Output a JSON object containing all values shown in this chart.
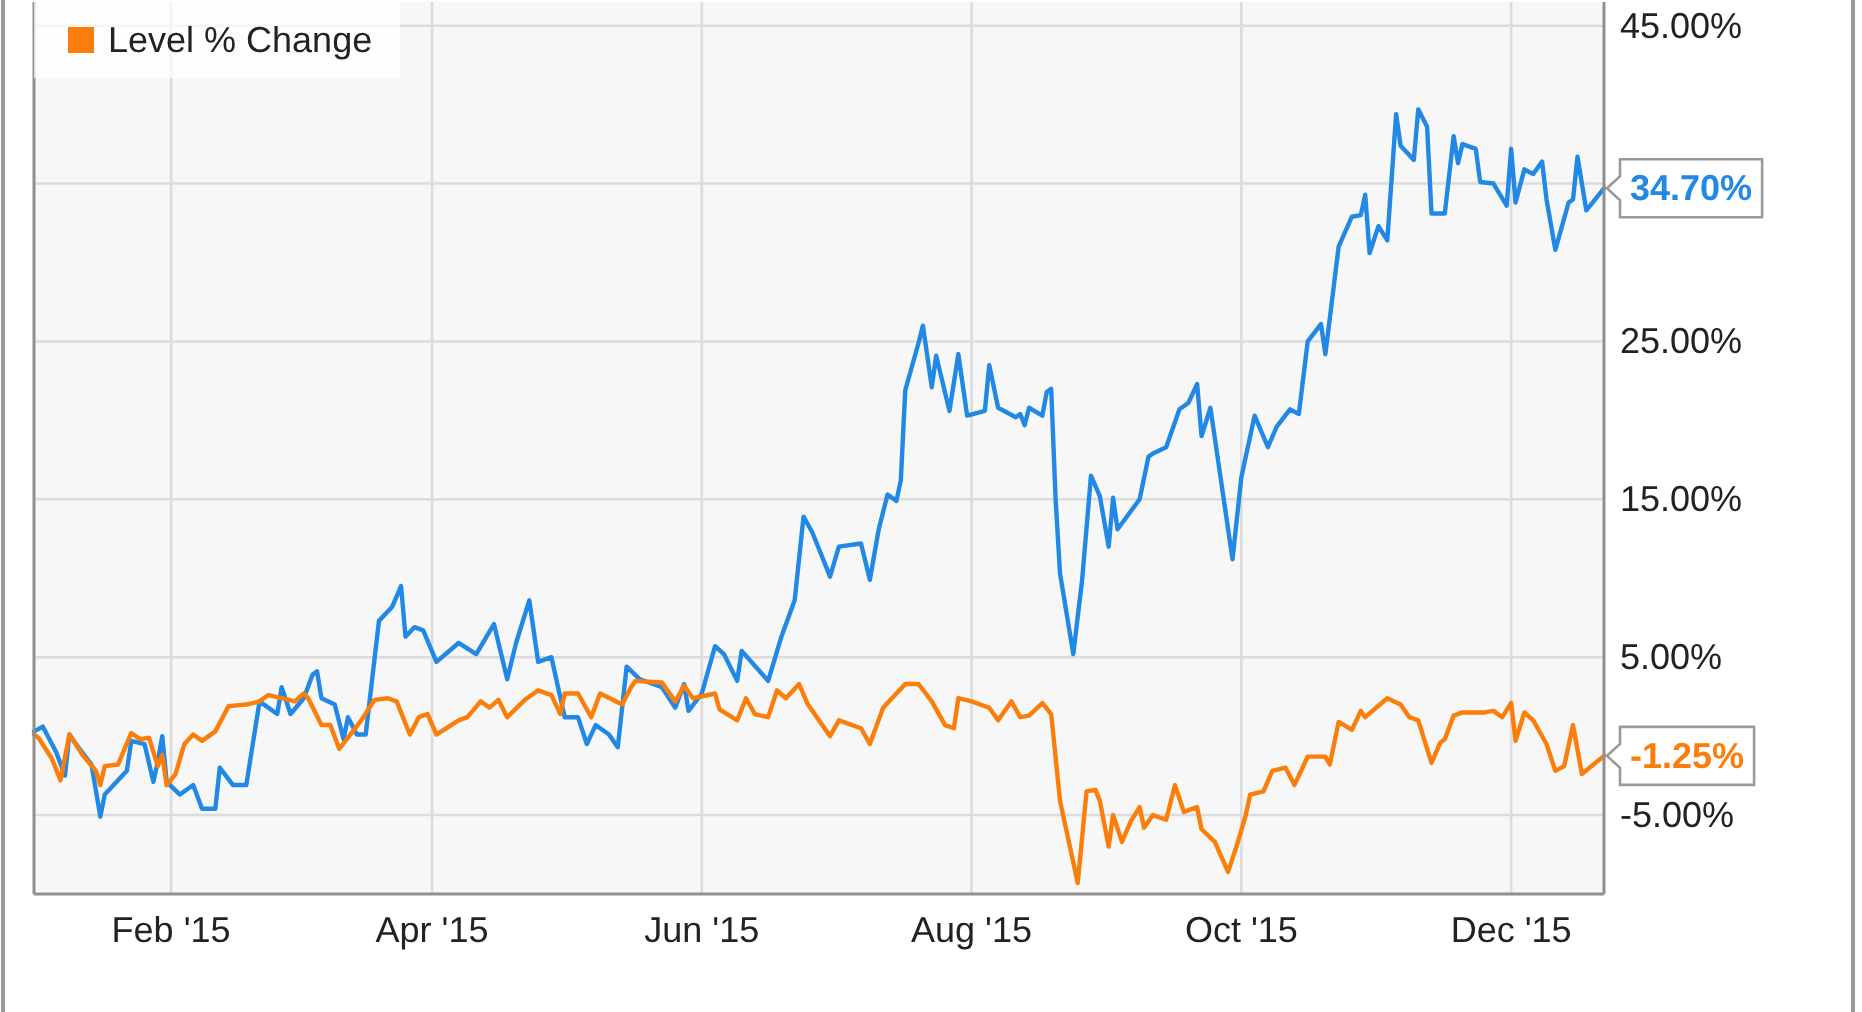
{
  "chart_data": {
    "type": "line",
    "xlim": [
      "2015-01-01",
      "2015-12-22"
    ],
    "ylim": [
      -10,
      46.5
    ],
    "xticks": [
      {
        "value": "2015-02-01",
        "label": "Feb '15"
      },
      {
        "value": "2015-04-01",
        "label": "Apr '15"
      },
      {
        "value": "2015-06-01",
        "label": "Jun '15"
      },
      {
        "value": "2015-08-01",
        "label": "Aug '15"
      },
      {
        "value": "2015-10-01",
        "label": "Oct '15"
      },
      {
        "value": "2015-12-01",
        "label": "Dec '15"
      }
    ],
    "yticks": [
      {
        "value": -5,
        "label": "-5.00%"
      },
      {
        "value": 5,
        "label": "5.00%"
      },
      {
        "value": 15,
        "label": "15.00%"
      },
      {
        "value": 25,
        "label": "25.00%"
      },
      {
        "value": 35,
        "label": null
      },
      {
        "value": 45,
        "label": "45.00%"
      }
    ],
    "grid": true,
    "legend": "top left",
    "line_style": "solid",
    "series": [
      {
        "color": "#2188e6",
        "x": [
          "2015-01-01",
          "2015-01-03",
          "2015-01-06",
          "2015-01-08",
          "2015-01-09",
          "2015-01-11",
          "2015-01-14",
          "2015-01-16",
          "2015-01-17",
          "2015-01-22",
          "2015-01-23",
          "2015-01-26",
          "2015-01-28",
          "2015-01-29",
          "2015-01-30",
          "2015-01-31",
          "2015-02-03",
          "2015-02-06",
          "2015-02-08",
          "2015-02-11",
          "2015-02-12",
          "2015-02-15",
          "2015-02-18",
          "2015-02-21",
          "2015-02-25",
          "2015-02-26",
          "2015-02-28",
          "2015-03-03",
          "2015-03-05",
          "2015-03-06",
          "2015-03-07",
          "2015-03-10",
          "2015-03-12",
          "2015-03-13",
          "2015-03-15",
          "2015-03-17",
          "2015-03-20",
          "2015-03-23",
          "2015-03-25",
          "2015-03-26",
          "2015-03-28",
          "2015-03-30",
          "2015-04-02",
          "2015-04-07",
          "2015-04-11",
          "2015-04-15",
          "2015-04-18",
          "2015-04-20",
          "2015-04-23",
          "2015-04-25",
          "2015-04-28",
          "2015-05-01",
          "2015-05-04",
          "2015-05-06",
          "2015-05-08",
          "2015-05-11",
          "2015-05-13",
          "2015-05-15",
          "2015-05-18",
          "2015-05-23",
          "2015-05-26",
          "2015-05-28",
          "2015-05-29",
          "2015-06-01",
          "2015-06-04",
          "2015-06-06",
          "2015-06-09",
          "2015-06-10",
          "2015-06-16",
          "2015-06-19",
          "2015-06-22",
          "2015-06-24",
          "2015-06-26",
          "2015-06-30",
          "2015-07-02",
          "2015-07-07",
          "2015-07-09",
          "2015-07-11",
          "2015-07-13",
          "2015-07-15",
          "2015-07-16",
          "2015-07-17",
          "2015-07-20",
          "2015-07-21",
          "2015-07-23",
          "2015-07-24",
          "2015-07-27",
          "2015-07-29",
          "2015-07-31",
          "2015-08-04",
          "2015-08-05",
          "2015-08-07",
          "2015-08-11",
          "2015-08-12",
          "2015-08-13",
          "2015-08-14",
          "2015-08-17",
          "2015-08-18",
          "2015-08-19",
          "2015-08-20",
          "2015-08-21",
          "2015-08-24",
          "2015-08-26",
          "2015-08-28",
          "2015-08-30",
          "2015-09-01",
          "2015-09-02",
          "2015-09-03",
          "2015-09-08",
          "2015-09-10",
          "2015-09-11",
          "2015-09-14",
          "2015-09-17",
          "2015-09-19",
          "2015-09-21",
          "2015-09-22",
          "2015-09-24",
          "2015-09-29",
          "2015-10-01",
          "2015-10-04",
          "2015-10-07",
          "2015-10-09",
          "2015-10-12",
          "2015-10-14",
          "2015-10-16",
          "2015-10-19",
          "2015-10-20",
          "2015-10-23",
          "2015-10-26",
          "2015-10-28",
          "2015-10-29",
          "2015-10-30",
          "2015-11-01",
          "2015-11-03",
          "2015-11-05",
          "2015-11-06",
          "2015-11-09",
          "2015-11-10",
          "2015-11-12",
          "2015-11-13",
          "2015-11-16",
          "2015-11-18",
          "2015-11-19",
          "2015-11-20",
          "2015-11-23",
          "2015-11-24",
          "2015-11-27",
          "2015-11-30",
          "2015-12-01",
          "2015-12-02",
          "2015-12-04",
          "2015-12-06",
          "2015-12-08",
          "2015-12-09",
          "2015-12-11",
          "2015-12-14",
          "2015-12-15",
          "2015-12-16",
          "2015-12-18",
          "2015-12-22"
        ],
        "values": [
          0.3,
          0.6,
          -1.0,
          -2.5,
          0.1,
          -0.7,
          -1.8,
          -5.1,
          -3.7,
          -2.2,
          -0.3,
          -0.5,
          -2.9,
          -1.6,
          0.0,
          -2.9,
          -3.7,
          -3.1,
          -4.6,
          -4.6,
          -2.0,
          -3.1,
          -3.1,
          2.2,
          1.4,
          3.1,
          1.4,
          2.4,
          3.9,
          4.1,
          2.4,
          2.0,
          -0.2,
          1.2,
          0.1,
          0.1,
          7.3,
          8.2,
          9.5,
          6.3,
          6.9,
          6.7,
          4.7,
          5.9,
          5.2,
          7.1,
          3.6,
          5.9,
          8.6,
          4.7,
          5.0,
          1.2,
          1.2,
          -0.5,
          0.7,
          0.1,
          -0.7,
          4.4,
          3.6,
          3.1,
          1.8,
          3.3,
          1.6,
          2.7,
          5.7,
          5.2,
          3.5,
          5.4,
          3.5,
          6.3,
          8.6,
          13.9,
          12.9,
          10.1,
          12.0,
          12.2,
          9.9,
          13.1,
          15.3,
          14.9,
          16.2,
          21.9,
          24.9,
          26.0,
          22.1,
          24.1,
          20.6,
          24.2,
          20.3,
          20.6,
          23.5,
          20.8,
          20.2,
          20.4,
          19.7,
          20.8,
          20.3,
          21.8,
          22.0,
          15.0,
          10.3,
          5.2,
          9.9,
          16.5,
          15.2,
          12.0,
          15.1,
          13.1,
          15.0,
          17.7,
          17.9,
          18.3,
          20.7,
          21.1,
          22.3,
          19.0,
          20.8,
          11.2,
          16.4,
          20.3,
          18.3,
          19.6,
          20.7,
          20.4,
          25.0,
          26.1,
          24.2,
          31.0,
          32.9,
          33.0,
          34.3,
          30.6,
          32.3,
          31.4,
          39.4,
          37.4,
          36.5,
          39.7,
          38.6,
          33.1,
          33.1,
          38.0,
          36.3,
          37.5,
          37.2,
          35.1,
          35.0,
          33.6,
          37.2,
          33.8,
          35.9,
          35.6,
          36.4,
          34.0,
          30.8,
          33.8,
          34.0,
          36.7,
          33.3,
          34.7
        ],
        "value_labels": [
          null,
          null,
          null,
          null,
          null,
          null,
          null,
          null,
          null,
          null,
          null,
          null,
          null,
          null,
          null,
          null,
          null,
          null,
          null,
          null,
          null,
          null,
          null,
          null,
          null,
          null,
          null,
          null,
          null,
          null,
          null,
          null,
          null,
          null,
          null,
          null,
          null,
          null,
          null,
          null,
          null,
          null,
          null,
          null,
          null,
          null,
          null,
          null,
          null,
          null,
          null,
          null,
          null,
          null,
          null,
          null,
          null,
          null,
          null,
          null,
          null,
          null,
          null,
          null,
          null,
          null,
          null,
          null,
          null,
          null,
          null,
          null,
          null,
          null,
          null,
          null,
          null,
          null,
          null,
          null,
          null,
          null,
          null,
          null,
          null,
          null,
          null,
          null,
          null,
          null,
          null,
          null,
          null,
          null,
          null,
          null,
          null,
          null,
          null,
          null,
          null,
          null,
          null,
          null,
          null,
          null,
          null,
          null,
          null,
          null,
          null,
          null,
          null,
          null,
          null,
          null,
          null,
          null,
          null,
          null,
          null,
          null,
          null,
          null,
          null,
          null,
          null,
          null,
          null,
          null,
          null,
          null,
          null,
          null,
          null,
          null,
          null,
          null,
          null,
          null,
          null,
          null,
          null,
          null,
          null,
          null,
          null,
          null,
          null,
          null,
          null,
          null,
          null,
          null,
          null,
          null,
          null,
          null,
          null,
          "34.70%"
        ]
      },
      {
        "name": "Level % Change",
        "color": "#fb7d0a",
        "x": [
          "2015-01-01",
          "2015-01-02",
          "2015-01-05",
          "2015-01-07",
          "2015-01-09",
          "2015-01-12",
          "2015-01-15",
          "2015-01-16",
          "2015-01-17",
          "2015-01-20",
          "2015-01-23",
          "2015-01-25",
          "2015-01-27",
          "2015-01-29",
          "2015-01-30",
          "2015-01-31",
          "2015-02-02",
          "2015-02-04",
          "2015-02-06",
          "2015-02-08",
          "2015-02-11",
          "2015-02-14",
          "2015-02-18",
          "2015-02-21",
          "2015-02-23",
          "2015-02-26",
          "2015-03-01",
          "2015-03-03",
          "2015-03-04",
          "2015-03-07",
          "2015-03-09",
          "2015-03-11",
          "2015-03-13",
          "2015-03-16",
          "2015-03-19",
          "2015-03-22",
          "2015-03-24",
          "2015-03-27",
          "2015-03-29",
          "2015-03-31",
          "2015-04-02",
          "2015-04-07",
          "2015-04-09",
          "2015-04-12",
          "2015-04-14",
          "2015-04-16",
          "2015-04-18",
          "2015-04-22",
          "2015-04-25",
          "2015-04-28",
          "2015-04-30",
          "2015-05-01",
          "2015-05-04",
          "2015-05-07",
          "2015-05-09",
          "2015-05-14",
          "2015-05-16",
          "2015-05-17",
          "2015-05-23",
          "2015-05-26",
          "2015-05-28",
          "2015-05-30",
          "2015-06-04",
          "2015-06-05",
          "2015-06-09",
          "2015-06-11",
          "2015-06-13",
          "2015-06-16",
          "2015-06-18",
          "2015-06-20",
          "2015-06-23",
          "2015-06-25",
          "2015-06-30",
          "2015-07-02",
          "2015-07-07",
          "2015-07-09",
          "2015-07-12",
          "2015-07-14",
          "2015-07-17",
          "2015-07-20",
          "2015-07-23",
          "2015-07-26",
          "2015-07-28",
          "2015-07-29",
          "2015-08-01",
          "2015-08-05",
          "2015-08-07",
          "2015-08-10",
          "2015-08-12",
          "2015-08-14",
          "2015-08-17",
          "2015-08-19",
          "2015-08-21",
          "2015-08-23",
          "2015-08-25",
          "2015-08-27",
          "2015-08-29",
          "2015-08-30",
          "2015-09-01",
          "2015-09-02",
          "2015-09-04",
          "2015-09-06",
          "2015-09-08",
          "2015-09-09",
          "2015-09-11",
          "2015-09-14",
          "2015-09-16",
          "2015-09-18",
          "2015-09-21",
          "2015-09-22",
          "2015-09-25",
          "2015-09-28",
          "2015-09-30",
          "2015-10-02",
          "2015-10-03",
          "2015-10-06",
          "2015-10-08",
          "2015-10-11",
          "2015-10-13",
          "2015-10-16",
          "2015-10-20",
          "2015-10-21",
          "2015-10-23",
          "2015-10-26",
          "2015-10-28",
          "2015-10-29",
          "2015-11-03",
          "2015-11-06",
          "2015-11-08",
          "2015-11-10",
          "2015-11-13",
          "2015-11-15",
          "2015-11-16",
          "2015-11-18",
          "2015-11-20",
          "2015-11-25",
          "2015-11-27",
          "2015-11-29",
          "2015-12-01",
          "2015-12-02",
          "2015-12-04",
          "2015-12-06",
          "2015-12-09",
          "2015-12-11",
          "2015-12-13",
          "2015-12-15",
          "2015-12-17",
          "2015-12-22"
        ],
        "values": [
          0.1,
          -0.1,
          -1.4,
          -2.8,
          0.1,
          -1.2,
          -2.2,
          -3.1,
          -1.9,
          -1.8,
          0.2,
          -0.2,
          -0.1,
          -1.9,
          -1.2,
          -3.1,
          -2.4,
          -0.5,
          0.1,
          -0.3,
          0.3,
          1.9,
          2.0,
          2.2,
          2.6,
          2.4,
          2.2,
          2.7,
          2.4,
          0.7,
          0.7,
          -0.8,
          -0.1,
          1.0,
          2.3,
          2.4,
          2.2,
          0.1,
          1.2,
          1.4,
          0.1,
          1.0,
          1.2,
          2.2,
          1.8,
          2.3,
          1.2,
          2.3,
          2.9,
          2.6,
          1.4,
          2.7,
          2.7,
          1.2,
          2.7,
          2.0,
          3.1,
          3.5,
          3.4,
          2.2,
          3.2,
          2.4,
          2.7,
          1.7,
          1.0,
          2.4,
          1.4,
          1.2,
          2.9,
          2.4,
          3.3,
          2.0,
          0.0,
          1.0,
          0.5,
          -0.5,
          1.8,
          2.4,
          3.3,
          3.3,
          2.2,
          0.7,
          0.5,
          2.4,
          2.2,
          1.8,
          1.0,
          2.2,
          1.2,
          1.3,
          2.1,
          1.4,
          -4.1,
          -6.7,
          -9.3,
          -3.5,
          -3.4,
          -4.1,
          -7.0,
          -5.0,
          -6.7,
          -5.4,
          -4.5,
          -5.8,
          -5.0,
          -5.3,
          -3.1,
          -4.8,
          -4.5,
          -5.9,
          -6.7,
          -8.6,
          -6.9,
          -5.0,
          -3.7,
          -3.5,
          -2.2,
          -2.0,
          -3.1,
          -1.3,
          -1.3,
          -1.8,
          0.9,
          0.4,
          1.6,
          1.2,
          2.4,
          2.0,
          1.2,
          1.0,
          -1.7,
          -0.4,
          -0.2,
          1.3,
          1.5,
          1.5,
          1.6,
          1.2,
          2.1,
          -0.3,
          1.5,
          1.0,
          -0.5,
          -2.2,
          -1.9,
          0.7,
          -2.4,
          -1.25
        ],
        "value_labels": [
          null,
          null,
          null,
          null,
          null,
          null,
          null,
          null,
          null,
          null,
          null,
          null,
          null,
          null,
          null,
          null,
          null,
          null,
          null,
          null,
          null,
          null,
          null,
          null,
          null,
          null,
          null,
          null,
          null,
          null,
          null,
          null,
          null,
          null,
          null,
          null,
          null,
          null,
          null,
          null,
          null,
          null,
          null,
          null,
          null,
          null,
          null,
          null,
          null,
          null,
          null,
          null,
          null,
          null,
          null,
          null,
          null,
          null,
          null,
          null,
          null,
          null,
          null,
          null,
          null,
          null,
          null,
          null,
          null,
          null,
          null,
          null,
          null,
          null,
          null,
          null,
          null,
          null,
          null,
          null,
          null,
          null,
          null,
          null,
          null,
          null,
          null,
          null,
          null,
          null,
          null,
          null,
          null,
          null,
          null,
          null,
          null,
          null,
          null,
          null,
          null,
          null,
          null,
          null,
          null,
          null,
          null,
          null,
          null,
          null,
          null,
          null,
          null,
          null,
          null,
          null,
          null,
          null,
          null,
          null,
          null,
          null,
          null,
          null,
          null,
          null,
          null,
          null,
          null,
          null,
          null,
          null,
          null,
          null,
          null,
          null,
          null,
          null,
          null,
          null,
          null,
          null,
          null,
          null,
          null,
          null,
          null,
          "-1.25%"
        ]
      }
    ]
  }
}
